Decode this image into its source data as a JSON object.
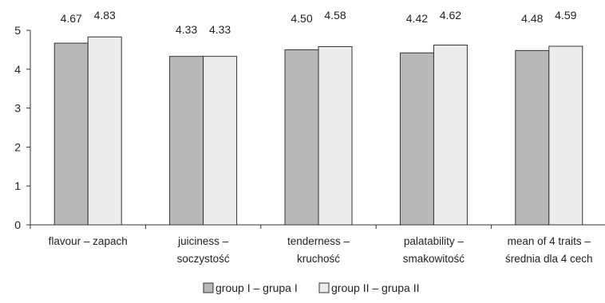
{
  "chart_data": {
    "type": "bar",
    "categories": [
      [
        "flavour – zapach"
      ],
      [
        "juiciness –",
        "soczystość"
      ],
      [
        "tenderness –",
        "kruchość"
      ],
      [
        "palatability –",
        "smakowitość"
      ],
      [
        "mean of 4 traits –",
        "średnia dla 4 cech"
      ]
    ],
    "series": [
      {
        "name": "group I – grupa I",
        "values": [
          4.67,
          4.33,
          4.5,
          4.42,
          4.48
        ],
        "labels": [
          "4.67",
          "4.33",
          "4.50",
          "4.42",
          "4.48"
        ],
        "color": "#b8b8b8"
      },
      {
        "name": "group II – grupa II",
        "values": [
          4.83,
          4.33,
          4.58,
          4.62,
          4.59
        ],
        "labels": [
          "4.83",
          "4.33",
          "4.58",
          "4.62",
          "4.59"
        ],
        "color": "#ececec"
      }
    ],
    "ylim": [
      0,
      5
    ],
    "yticks": [
      "0",
      "1",
      "2",
      "3",
      "4",
      "5"
    ],
    "grid": false,
    "legend_position": "bottom"
  }
}
